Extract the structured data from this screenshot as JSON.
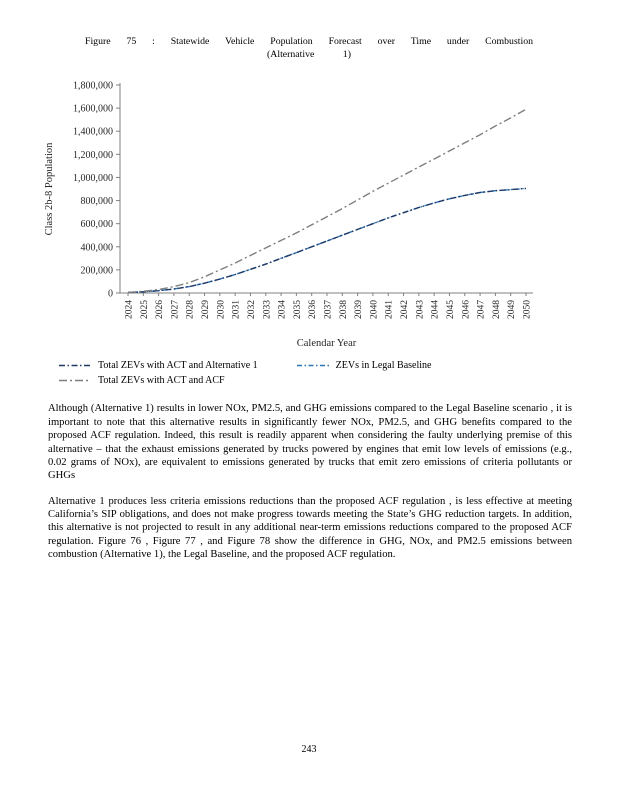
{
  "figure_caption": {
    "line1": "Figure 75 : Statewide Vehicle Population Forecast over Time under Combustion",
    "line2": "(Alternative 1)"
  },
  "chart_data": {
    "type": "line",
    "title": "Statewide Vehicle Population Forecast over Time under Combustion (Alternative 1)",
    "xlabel": "Calendar Year",
    "ylabel": "Class 2b-8 Population",
    "ylim": [
      0,
      1800000
    ],
    "ytick_step": 200000,
    "grid": false,
    "legend_position": "bottom",
    "x": [
      2024,
      2025,
      2026,
      2027,
      2028,
      2029,
      2030,
      2031,
      2032,
      2033,
      2034,
      2035,
      2036,
      2037,
      2038,
      2039,
      2040,
      2041,
      2042,
      2043,
      2044,
      2045,
      2046,
      2047,
      2048,
      2049,
      2050
    ],
    "series": [
      {
        "name": "Total ZEVs with ACT and Alternative 1",
        "color": "#1f3864",
        "dash": "6 2.5 1.5 2.5",
        "values": [
          5000,
          10000,
          20000,
          35000,
          55000,
          85000,
          120000,
          160000,
          205000,
          250000,
          300000,
          350000,
          400000,
          450000,
          500000,
          550000,
          600000,
          650000,
          695000,
          740000,
          780000,
          815000,
          845000,
          870000,
          885000,
          895000,
          905000
        ]
      },
      {
        "name": "ZEVs in Legal Baseline",
        "color": "#2e75b6",
        "dash": "5 2.5 1.5 2.5",
        "values": [
          5000,
          10000,
          20000,
          35000,
          55000,
          85000,
          120000,
          160000,
          205000,
          250000,
          300000,
          350000,
          400000,
          450000,
          500000,
          550000,
          600000,
          650000,
          695000,
          740000,
          780000,
          815000,
          845000,
          870000,
          885000,
          895000,
          905000
        ]
      },
      {
        "name": "Total ZEVs with ACT and ACF",
        "color": "#7f7f7f",
        "dash": "8 3 2 3",
        "values": [
          5000,
          15000,
          30000,
          55000,
          90000,
          140000,
          200000,
          260000,
          325000,
          390000,
          455000,
          520000,
          590000,
          660000,
          730000,
          805000,
          880000,
          950000,
          1020000,
          1090000,
          1160000,
          1230000,
          1300000,
          1370000,
          1445000,
          1515000,
          1590000
        ]
      }
    ]
  },
  "body": {
    "paragraph1": "Although (Alternative 1) results in lower NOx, PM2.5, and GHG emissions compared to the Legal Baseline scenario , it is important to note that this alternative results in significantly fewer NOx, PM2.5, and GHG benefits compared to the proposed ACF regulation. Indeed, this result is readily apparent when considering the faulty underlying premise of this alternative – that the exhaust emissions generated by trucks powered by engines that emit low levels of emissions (e.g., 0.02 grams of NOx), are equivalent to emissions generated by trucks that emit zero emissions of criteria pollutants or GHGs",
    "paragraph2": "Alternative 1 produces less criteria emissions reductions than the proposed ACF regulation , is less effective at meeting California’s SIP obligations, and does not make progress towards meeting the State’s GHG reduction targets.  In addition, this alternative is not projected to result in any additional near-term emissions reductions compared to the proposed ACF regulation. Figure 76 , Figure 77 , and Figure 78 show the difference in GHG, NOx, and PM2.5 emissions between combustion (Alternative 1), the Legal Baseline, and the proposed ACF regulation."
  },
  "page_number": "243"
}
